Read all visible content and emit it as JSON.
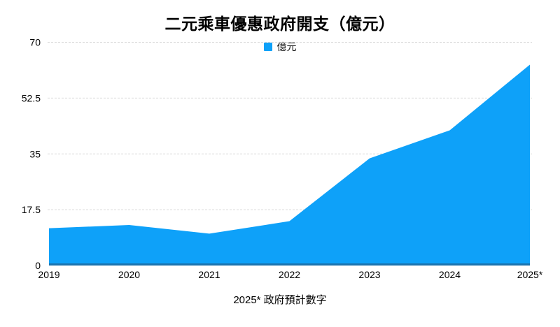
{
  "title": "二元乘車優惠政府開支（億元）",
  "legend": {
    "label": "億元"
  },
  "footnote": "2025* 政府預計數字",
  "colors": {
    "area_fill": "#0ea1f9",
    "baseline_stroke": "#1b73ae",
    "gridline": "#d9d9d9",
    "text": "#000000"
  },
  "chart_data": {
    "type": "area",
    "title": "二元乘車優惠政府開支（億元）",
    "categories": [
      "2019",
      "2020",
      "2021",
      "2022",
      "2023",
      "2024",
      "2025*"
    ],
    "series": [
      {
        "name": "億元",
        "values": [
          11.7,
          12.7,
          10.0,
          13.9,
          33.6,
          42.4,
          63.0
        ]
      }
    ],
    "xlabel": "",
    "ylabel": "",
    "ylim": [
      0,
      70
    ],
    "yticks": [
      0,
      17.5,
      35,
      52.5,
      70
    ],
    "grid": true,
    "gridline_style": "dashed",
    "legend_position": "top-center",
    "footnote": "2025* 政府預計數字"
  }
}
